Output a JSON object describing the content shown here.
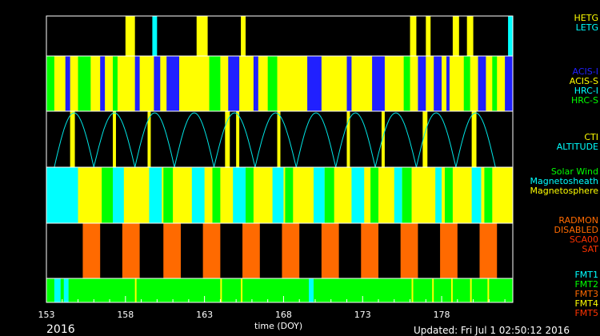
{
  "chart_data": {
    "type": "timeline",
    "xlabel": "time (DOY)",
    "xlim": [
      153.0,
      182.5
    ],
    "xticks": [
      153,
      158,
      163,
      168,
      173,
      178
    ],
    "year": "2016",
    "updated": "Updated: Fri Jul  1 02:50:12 2016",
    "panels": [
      {
        "name": "grating",
        "legend": [
          {
            "label": "HETG",
            "color": "#ffff00"
          },
          {
            "label": "LETG",
            "color": "#00ffff"
          }
        ],
        "segments": [
          {
            "start": 158.0,
            "end": 158.6,
            "color": "#ffff00"
          },
          {
            "start": 159.7,
            "end": 160.0,
            "color": "#00ffff"
          },
          {
            "start": 162.5,
            "end": 163.2,
            "color": "#ffff00"
          },
          {
            "start": 165.3,
            "end": 165.6,
            "color": "#ffff00"
          },
          {
            "start": 176.0,
            "end": 176.4,
            "color": "#ffff00"
          },
          {
            "start": 177.0,
            "end": 177.3,
            "color": "#ffff00"
          },
          {
            "start": 178.7,
            "end": 179.1,
            "color": "#ffff00"
          },
          {
            "start": 179.6,
            "end": 180.0,
            "color": "#ffff00"
          },
          {
            "start": 182.2,
            "end": 182.5,
            "color": "#00ffff"
          }
        ]
      },
      {
        "name": "instrument",
        "legend": [
          {
            "label": "ACIS-I",
            "color": "#2020ff"
          },
          {
            "label": "ACIS-S",
            "color": "#ffff00"
          },
          {
            "label": "HRC-I",
            "color": "#00ffff"
          },
          {
            "label": "HRC-S",
            "color": "#00ff00"
          }
        ],
        "base_color": "#ffff00",
        "segments": [
          {
            "start": 153.0,
            "end": 153.5,
            "color": "#00ff00"
          },
          {
            "start": 154.2,
            "end": 154.5,
            "color": "#2020ff"
          },
          {
            "start": 155.0,
            "end": 155.8,
            "color": "#00ff00"
          },
          {
            "start": 156.4,
            "end": 156.7,
            "color": "#2020ff"
          },
          {
            "start": 157.2,
            "end": 157.5,
            "color": "#00ff00"
          },
          {
            "start": 158.6,
            "end": 158.9,
            "color": "#2020ff"
          },
          {
            "start": 159.8,
            "end": 160.2,
            "color": "#2020ff"
          },
          {
            "start": 160.6,
            "end": 161.4,
            "color": "#2020ff"
          },
          {
            "start": 163.3,
            "end": 164.0,
            "color": "#00ff00"
          },
          {
            "start": 164.5,
            "end": 165.2,
            "color": "#2020ff"
          },
          {
            "start": 166.1,
            "end": 166.4,
            "color": "#2020ff"
          },
          {
            "start": 167.0,
            "end": 167.6,
            "color": "#00ff00"
          },
          {
            "start": 169.5,
            "end": 170.4,
            "color": "#2020ff"
          },
          {
            "start": 172.0,
            "end": 172.3,
            "color": "#2020ff"
          },
          {
            "start": 173.6,
            "end": 174.4,
            "color": "#2020ff"
          },
          {
            "start": 175.6,
            "end": 176.0,
            "color": "#00ff00"
          },
          {
            "start": 176.5,
            "end": 177.0,
            "color": "#2020ff"
          },
          {
            "start": 177.5,
            "end": 178.0,
            "color": "#2020ff"
          },
          {
            "start": 178.3,
            "end": 178.5,
            "color": "#2020ff"
          },
          {
            "start": 179.4,
            "end": 179.8,
            "color": "#00ff00"
          },
          {
            "start": 180.3,
            "end": 180.8,
            "color": "#2020ff"
          },
          {
            "start": 181.2,
            "end": 181.5,
            "color": "#00ff00"
          },
          {
            "start": 182.0,
            "end": 182.5,
            "color": "#2020ff"
          }
        ]
      },
      {
        "name": "altitude",
        "legend": [
          {
            "label": "CTI",
            "color": "#ffff00"
          },
          {
            "label": "ALTITUDE",
            "color": "#00ffff"
          }
        ],
        "perigees": [
          153.5,
          156.0,
          158.6,
          161.1,
          163.6,
          166.2,
          168.8,
          171.3,
          173.8,
          176.4,
          178.9,
          181.4
        ],
        "cti_segments": [
          {
            "start": 154.5,
            "end": 154.8
          },
          {
            "start": 157.2,
            "end": 157.4
          },
          {
            "start": 159.4,
            "end": 159.6
          },
          {
            "start": 164.3,
            "end": 164.6
          },
          {
            "start": 165.0,
            "end": 165.2
          },
          {
            "start": 167.6,
            "end": 167.8
          },
          {
            "start": 172.0,
            "end": 172.2
          },
          {
            "start": 174.2,
            "end": 174.4
          },
          {
            "start": 176.8,
            "end": 177.1
          },
          {
            "start": 179.9,
            "end": 180.2
          }
        ]
      },
      {
        "name": "region",
        "legend": [
          {
            "label": "Solar Wind",
            "color": "#00ff00"
          },
          {
            "label": "Magnetosheath",
            "color": "#00ffff"
          },
          {
            "label": "Magnetosphere",
            "color": "#ffff00"
          }
        ],
        "base_color": "#ffff00",
        "segments": [
          {
            "start": 153.0,
            "end": 155.0,
            "color": "#00ffff"
          },
          {
            "start": 156.5,
            "end": 157.2,
            "color": "#00ff00"
          },
          {
            "start": 157.2,
            "end": 157.9,
            "color": "#00ffff"
          },
          {
            "start": 159.5,
            "end": 160.3,
            "color": "#00ffff"
          },
          {
            "start": 160.4,
            "end": 161.0,
            "color": "#00ff00"
          },
          {
            "start": 162.2,
            "end": 163.0,
            "color": "#00ffff"
          },
          {
            "start": 163.5,
            "end": 164.0,
            "color": "#00ff00"
          },
          {
            "start": 164.8,
            "end": 165.6,
            "color": "#00ffff"
          },
          {
            "start": 165.6,
            "end": 166.1,
            "color": "#00ff00"
          },
          {
            "start": 167.3,
            "end": 168.0,
            "color": "#00ffff"
          },
          {
            "start": 168.1,
            "end": 168.6,
            "color": "#00ff00"
          },
          {
            "start": 169.9,
            "end": 170.6,
            "color": "#00ffff"
          },
          {
            "start": 170.6,
            "end": 171.2,
            "color": "#00ff00"
          },
          {
            "start": 172.3,
            "end": 173.1,
            "color": "#00ffff"
          },
          {
            "start": 173.5,
            "end": 174.0,
            "color": "#00ff00"
          },
          {
            "start": 175.0,
            "end": 175.5,
            "color": "#00ffff"
          },
          {
            "start": 175.5,
            "end": 176.1,
            "color": "#00ff00"
          },
          {
            "start": 177.6,
            "end": 178.0,
            "color": "#00ffff"
          },
          {
            "start": 178.2,
            "end": 178.7,
            "color": "#00ff00"
          },
          {
            "start": 179.9,
            "end": 180.5,
            "color": "#00ffff"
          },
          {
            "start": 180.7,
            "end": 181.2,
            "color": "#00ff00"
          }
        ]
      },
      {
        "name": "radmon",
        "legend": [
          {
            "label": "RADMON",
            "color": "#ff6a00"
          },
          {
            "label": "DISABLED",
            "color": "#ff6a00"
          },
          {
            "label": "SCA00",
            "color": "#ff3300"
          },
          {
            "label": "SAT",
            "color": "#ff3300"
          }
        ],
        "segments": [
          {
            "start": 155.3,
            "end": 156.4,
            "color": "#ff6a00"
          },
          {
            "start": 157.8,
            "end": 158.9,
            "color": "#ff6a00"
          },
          {
            "start": 160.4,
            "end": 161.5,
            "color": "#ff6a00"
          },
          {
            "start": 162.9,
            "end": 164.0,
            "color": "#ff6a00"
          },
          {
            "start": 165.4,
            "end": 166.5,
            "color": "#ff6a00"
          },
          {
            "start": 167.9,
            "end": 169.0,
            "color": "#ff6a00"
          },
          {
            "start": 170.4,
            "end": 171.5,
            "color": "#ff6a00"
          },
          {
            "start": 172.9,
            "end": 174.0,
            "color": "#ff6a00"
          },
          {
            "start": 175.4,
            "end": 176.5,
            "color": "#ff6a00"
          },
          {
            "start": 177.9,
            "end": 179.0,
            "color": "#ff6a00"
          },
          {
            "start": 180.4,
            "end": 181.5,
            "color": "#ff6a00"
          }
        ]
      },
      {
        "name": "format",
        "legend": [
          {
            "label": "FMT1",
            "color": "#00ffff"
          },
          {
            "label": "FMT2",
            "color": "#00ff00"
          },
          {
            "label": "FMT3",
            "color": "#ff6a00"
          },
          {
            "label": "FMT4",
            "color": "#ffff00"
          },
          {
            "label": "FMT5",
            "color": "#ff3300"
          }
        ],
        "base_color": "#00ff00",
        "segments": [
          {
            "start": 153.5,
            "end": 153.9,
            "color": "#00ffff"
          },
          {
            "start": 154.1,
            "end": 154.4,
            "color": "#00ffff"
          },
          {
            "start": 169.6,
            "end": 169.9,
            "color": "#00ffff"
          },
          {
            "start": 158.6,
            "end": 158.7,
            "color": "#ffff00"
          },
          {
            "start": 164.0,
            "end": 164.1,
            "color": "#ffff00"
          },
          {
            "start": 165.3,
            "end": 165.4,
            "color": "#ffff00"
          },
          {
            "start": 176.1,
            "end": 176.2,
            "color": "#ffff00"
          },
          {
            "start": 177.4,
            "end": 177.5,
            "color": "#ffff00"
          },
          {
            "start": 178.6,
            "end": 178.7,
            "color": "#ffff00"
          },
          {
            "start": 179.8,
            "end": 179.9,
            "color": "#ffff00"
          },
          {
            "start": 180.9,
            "end": 181.0,
            "color": "#ffff00"
          }
        ]
      }
    ]
  }
}
